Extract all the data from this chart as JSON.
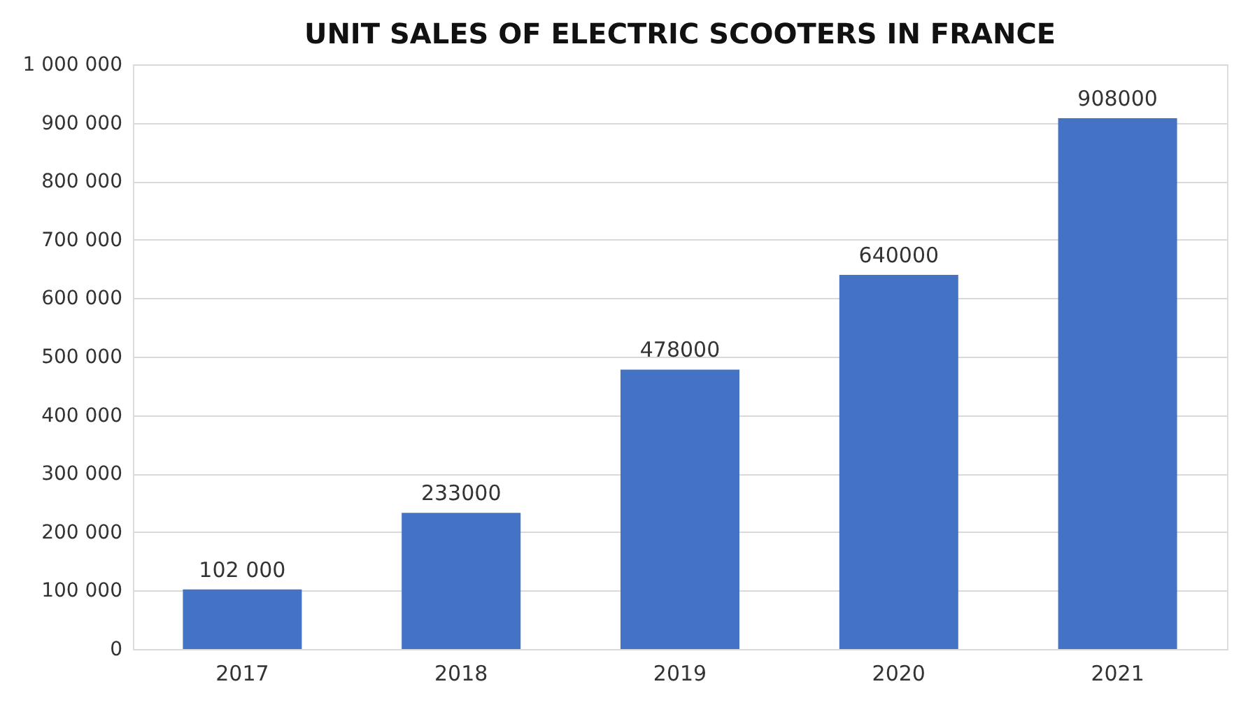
{
  "chart_data": {
    "type": "bar",
    "title": "UNIT SALES OF ELECTRIC SCOOTERS IN FRANCE",
    "categories": [
      "2017",
      "2018",
      "2019",
      "2020",
      "2021"
    ],
    "values": [
      102000,
      233000,
      478000,
      640000,
      908000
    ],
    "value_labels": [
      "102 000",
      "233000",
      "478000",
      "640000",
      "908000"
    ],
    "color": "#4472c4",
    "ylim": [
      0,
      1000000
    ],
    "yticks": [
      0,
      {
        "value": 100000,
        "label": "100 000"
      },
      {
        "value": 200000,
        "label": "200 000"
      },
      {
        "value": 300000,
        "label": "300 000"
      },
      {
        "value": 400000,
        "label": "400 000"
      },
      {
        "value": 500000,
        "label": "500 000"
      },
      {
        "value": 600000,
        "label": "600 000"
      },
      {
        "value": 700000,
        "label": "700 000"
      },
      {
        "value": 800000,
        "label": "800 000"
      },
      {
        "value": 900000,
        "label": "900 000"
      },
      {
        "value": 1000000,
        "label": "1 000 000"
      }
    ],
    "grid": "y"
  }
}
